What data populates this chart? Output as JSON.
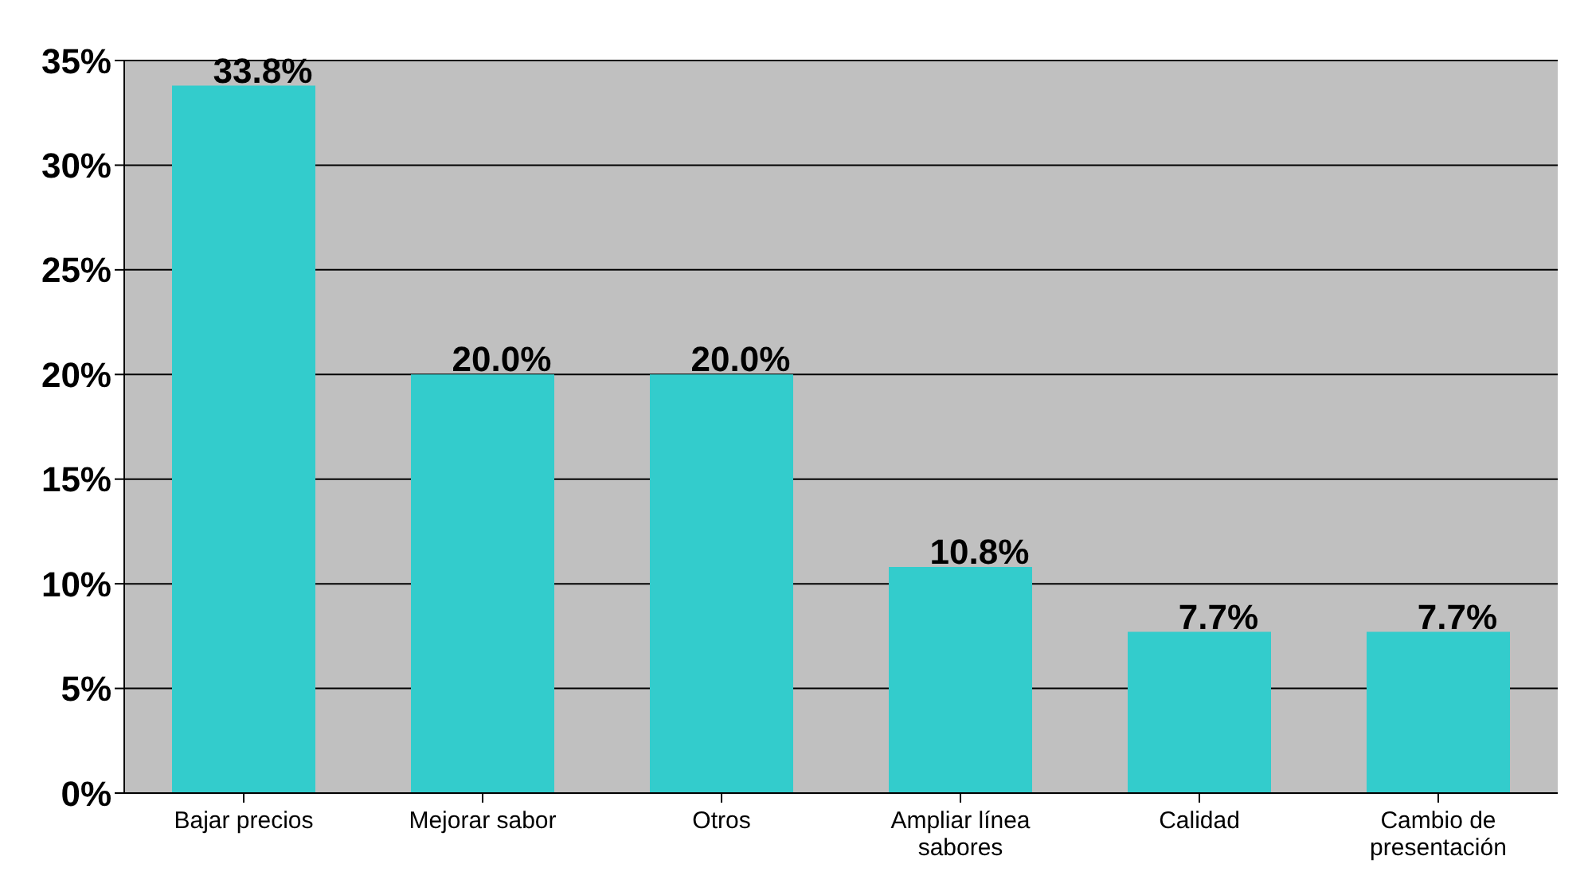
{
  "chart_data": {
    "type": "bar",
    "categories": [
      "Bajar precios",
      "Mejorar sabor",
      "Otros",
      "Ampliar línea sabores",
      "Calidad",
      "Cambio de presentación"
    ],
    "values": [
      33.8,
      20.0,
      20.0,
      10.8,
      7.7,
      7.7
    ],
    "value_labels": [
      "33.8%",
      "20.0%",
      "20.0%",
      "10.8%",
      "7.7%",
      "7.7%"
    ],
    "color": "#33cccc",
    "ylim": [
      0,
      35
    ],
    "yticks": [
      {
        "value": 0,
        "label": "0%"
      },
      {
        "value": 5,
        "label": "5%"
      },
      {
        "value": 10,
        "label": "10%"
      },
      {
        "value": 15,
        "label": "15%"
      },
      {
        "value": 20,
        "label": "20%"
      },
      {
        "value": 25,
        "label": "25%"
      },
      {
        "value": 30,
        "label": "30%"
      },
      {
        "value": 35,
        "label": "35%"
      }
    ],
    "grid": "y"
  }
}
